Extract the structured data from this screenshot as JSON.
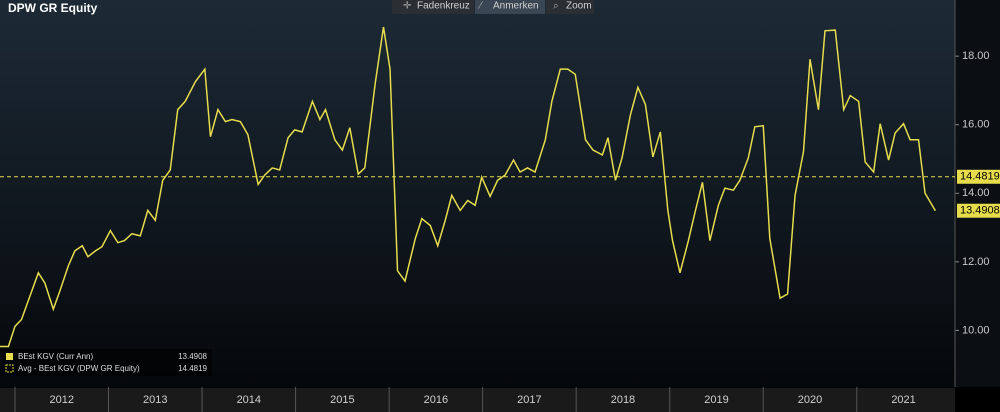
{
  "chart_data": {
    "type": "line",
    "title": "DPW GR Equity",
    "toolbar": [
      "Fadenkreuz",
      "Anmerken",
      "Zoom"
    ],
    "x": [
      2011.84,
      2011.93,
      2012.0,
      2012.07,
      2012.16,
      2012.25,
      2012.32,
      2012.41,
      2012.48,
      2012.57,
      2012.64,
      2012.72,
      2012.78,
      2012.86,
      2012.93,
      2013.02,
      2013.1,
      2013.17,
      2013.25,
      2013.34,
      2013.42,
      2013.5,
      2013.58,
      2013.66,
      2013.74,
      2013.82,
      2013.93,
      2014.03,
      2014.09,
      2014.17,
      2014.25,
      2014.32,
      2014.41,
      2014.49,
      2014.6,
      2014.67,
      2014.75,
      2014.83,
      2014.92,
      2014.99,
      2015.07,
      2015.18,
      2015.26,
      2015.32,
      2015.42,
      2015.5,
      2015.58,
      2015.67,
      2015.74,
      2015.85,
      2015.94,
      2016.01,
      2016.09,
      2016.17,
      2016.28,
      2016.35,
      2016.44,
      2016.52,
      2016.6,
      2016.67,
      2016.76,
      2016.84,
      2016.92,
      2016.99,
      2017.08,
      2017.16,
      2017.24,
      2017.33,
      2017.4,
      2017.48,
      2017.56,
      2017.67,
      2017.74,
      2017.83,
      2017.91,
      2017.99,
      2018.1,
      2018.18,
      2018.28,
      2018.34,
      2018.42,
      2018.49,
      2018.58,
      2018.66,
      2018.74,
      2018.82,
      2018.9,
      2018.98,
      2019.03,
      2019.11,
      2019.2,
      2019.27,
      2019.35,
      2019.43,
      2019.52,
      2019.59,
      2019.68,
      2019.75,
      2019.84,
      2019.91,
      2020.0,
      2020.07,
      2020.18,
      2020.26,
      2020.34,
      2020.43,
      2020.5,
      2020.59,
      2020.66,
      2020.77,
      2020.86,
      2020.93,
      2021.02,
      2021.09,
      2021.18,
      2021.25,
      2021.34,
      2021.41,
      2021.5,
      2021.57,
      2021.66,
      2021.73,
      2021.84
    ],
    "series": [
      {
        "name": "BEst KGV (Curr Ann)",
        "color": "#e6dc4c",
        "values": [
          9.53,
          9.53,
          10.12,
          10.32,
          11.0,
          11.68,
          11.38,
          10.62,
          11.15,
          11.88,
          12.32,
          12.47,
          12.15,
          12.32,
          12.44,
          12.91,
          12.56,
          12.62,
          12.82,
          12.76,
          13.5,
          13.21,
          14.38,
          14.68,
          16.44,
          16.68,
          17.26,
          17.62,
          15.65,
          16.44,
          16.09,
          16.15,
          16.09,
          15.71,
          14.26,
          14.53,
          14.74,
          14.68,
          15.62,
          15.85,
          15.79,
          16.68,
          16.15,
          16.44,
          15.56,
          15.26,
          15.91,
          14.56,
          14.74,
          17.18,
          18.85,
          17.62,
          11.74,
          11.44,
          12.68,
          13.26,
          13.06,
          12.47,
          13.21,
          13.94,
          13.5,
          13.79,
          13.65,
          14.47,
          13.91,
          14.38,
          14.53,
          14.97,
          14.62,
          14.74,
          14.62,
          15.56,
          16.68,
          17.62,
          17.62,
          17.47,
          15.56,
          15.26,
          15.12,
          15.62,
          14.38,
          15.03,
          16.29,
          17.09,
          16.59,
          15.06,
          15.79,
          13.5,
          12.62,
          11.68,
          12.62,
          13.44,
          14.32,
          12.62,
          13.65,
          14.15,
          14.09,
          14.38,
          15.03,
          15.94,
          15.97,
          12.68,
          10.94,
          11.06,
          13.94,
          15.21,
          17.91,
          16.44,
          18.74,
          18.76,
          16.44,
          16.85,
          16.68,
          14.91,
          14.62,
          16.03,
          14.97,
          15.76,
          16.03,
          15.56,
          15.56,
          14.0,
          13.4908
        ]
      },
      {
        "name": "Avg - BEst KGV (DPW GR Equity)",
        "color": "#e6dc4c",
        "value": 14.4819,
        "dashed": true
      }
    ],
    "xlim": [
      2011.84,
      2022.05
    ],
    "xticks": [
      2012,
      2013,
      2014,
      2015,
      2016,
      2017,
      2018,
      2019,
      2020,
      2021
    ],
    "ylim": [
      8.35,
      19.2
    ],
    "yticks": [
      {
        "value": 10,
        "label": "10.00"
      },
      {
        "value": 12,
        "label": "12.00"
      },
      {
        "value": 14,
        "label": "14.00"
      },
      {
        "value": 16,
        "label": "16.00"
      },
      {
        "value": 18,
        "label": "18.00"
      }
    ],
    "legend": "bottom-left"
  }
}
